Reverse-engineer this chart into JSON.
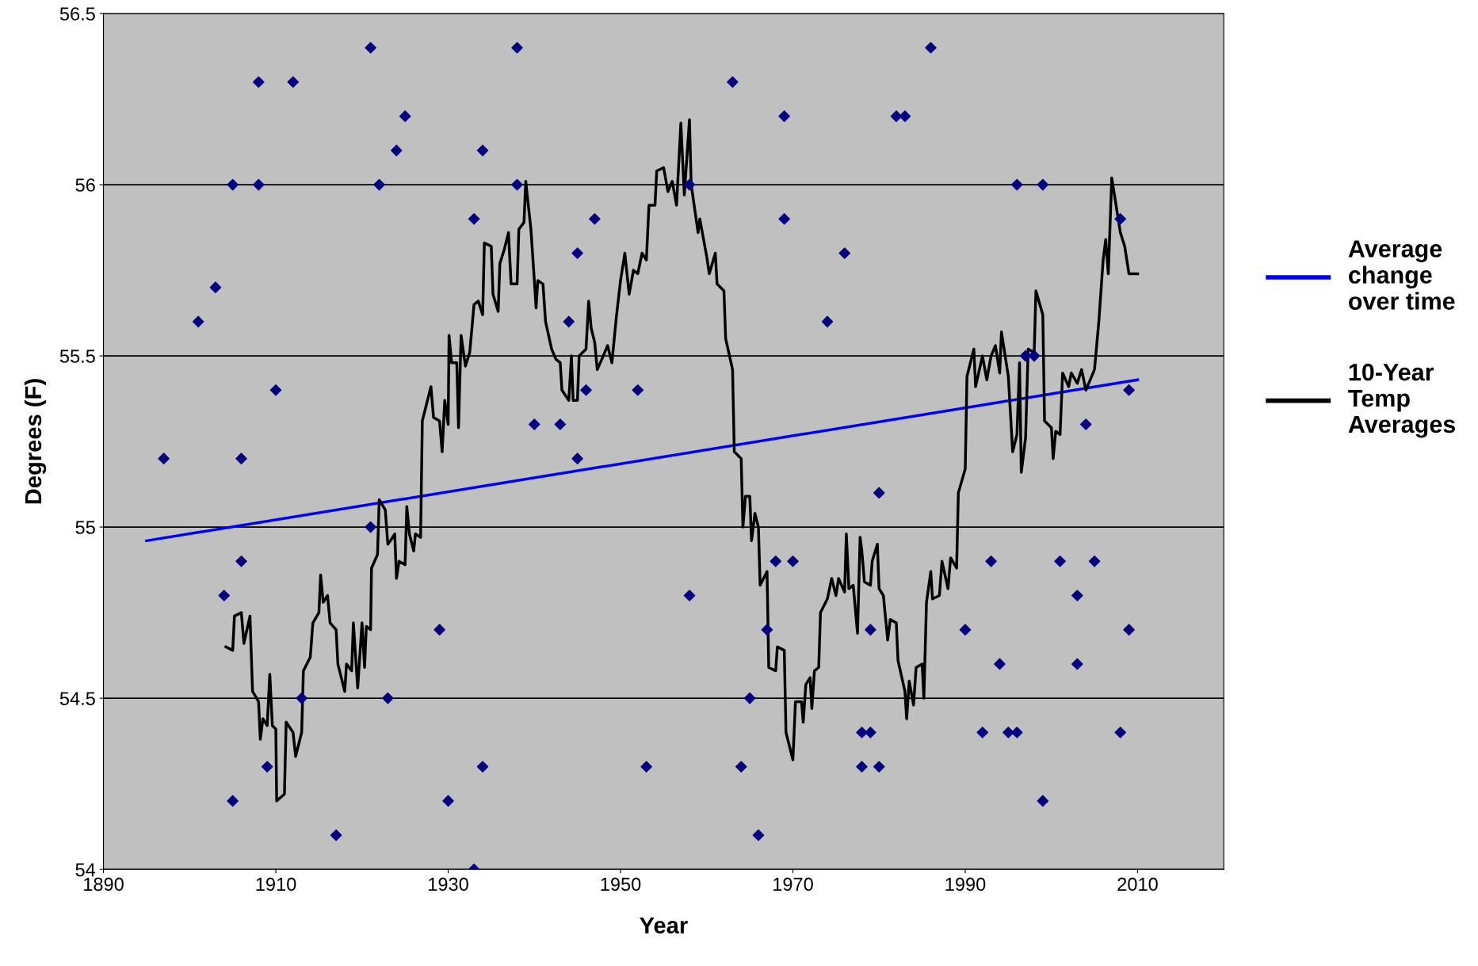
{
  "chart_data": {
    "type": "scatter",
    "xlabel": "Year",
    "ylabel": "Degrees (F)",
    "xlim": [
      1890,
      2020
    ],
    "xticks": [
      1890,
      1910,
      1930,
      1950,
      1970,
      1990,
      2010
    ],
    "ylim": [
      54,
      56.5
    ],
    "yticks": [
      54,
      54.5,
      55,
      55.5,
      56,
      56.5
    ],
    "grid": "y",
    "legend": "right",
    "series": [
      {
        "marker": "diamond",
        "color": "#000080",
        "x": [
          1897,
          1901,
          1903,
          1904,
          1905,
          1905,
          1906,
          1906,
          1908,
          1908,
          1909,
          1910,
          1912,
          1913,
          1917,
          1921,
          1921,
          1922,
          1923,
          1924,
          1925,
          1929,
          1930,
          1933,
          1933,
          1934,
          1934,
          1938,
          1938,
          1940,
          1943,
          1944,
          1945,
          1945,
          1946,
          1947,
          1952,
          1953,
          1958,
          1958,
          1963,
          1964,
          1965,
          1966,
          1967,
          1968,
          1969,
          1969,
          1970,
          1974,
          1976,
          1978,
          1978,
          1979,
          1979,
          1980,
          1980,
          1982,
          1983,
          1986,
          1990,
          1992,
          1993,
          1994,
          1995,
          1996,
          1996,
          1997,
          1998,
          1999,
          1999,
          2001,
          2003,
          2003,
          2004,
          2005,
          2008,
          2008,
          2009,
          2009
        ],
        "values": [
          55.2,
          55.6,
          55.7,
          54.8,
          56.0,
          54.2,
          55.2,
          54.9,
          56.3,
          56.0,
          54.3,
          55.4,
          56.3,
          54.5,
          54.1,
          56.4,
          55.0,
          56.0,
          54.5,
          56.1,
          56.2,
          54.7,
          54.2,
          55.9,
          54.0,
          56.1,
          54.3,
          56.4,
          56.0,
          55.3,
          55.3,
          55.6,
          55.8,
          55.2,
          55.4,
          55.9,
          55.4,
          54.3,
          54.8,
          56.0,
          56.3,
          54.3,
          54.5,
          54.1,
          54.7,
          54.9,
          56.2,
          55.9,
          54.9,
          55.6,
          55.8,
          54.4,
          54.3,
          54.4,
          54.7,
          55.1,
          54.3,
          56.2,
          56.2,
          56.4,
          54.7,
          54.4,
          54.9,
          54.6,
          54.4,
          56.0,
          54.4,
          55.5,
          55.5,
          56.0,
          54.2,
          54.9,
          54.8,
          54.6,
          55.3,
          54.9,
          54.4,
          55.9,
          55.4,
          54.7
        ]
      },
      {
        "type": "line",
        "name": "Average change over time",
        "color": "#0000ff",
        "x": [
          1895,
          2010
        ],
        "values": [
          54.96,
          55.43
        ]
      },
      {
        "type": "line",
        "name": "10-Year Temp Averages",
        "color": "#000000",
        "x": [
          1904.2,
          1905,
          1905.2,
          1906,
          1906.3,
          1907,
          1907.3,
          1908,
          1908.2,
          1908.5,
          1909,
          1909.3,
          1909.6,
          1910,
          1910.1,
          1911,
          1911.2,
          1912,
          1912.3,
          1913,
          1913.2,
          1914,
          1914.3,
          1915,
          1915.2,
          1915.5,
          1916,
          1916.3,
          1917,
          1917.2,
          1918,
          1918.2,
          1918.8,
          1919,
          1919.5,
          1920,
          1920.3,
          1920.5,
          1921,
          1921.1,
          1921.8,
          1922,
          1922.7,
          1923,
          1923.3,
          1923.8,
          1924,
          1924.3,
          1925,
          1925.2,
          1925.5,
          1926,
          1926.2,
          1926.8,
          1927,
          1928,
          1928.3,
          1929,
          1929.3,
          1929.6,
          1930,
          1930.1,
          1930.4,
          1931,
          1931.2,
          1931.5,
          1932,
          1932.5,
          1933,
          1933.5,
          1934,
          1934.2,
          1935,
          1935.2,
          1935.8,
          1936,
          1936.5,
          1937,
          1937.3,
          1938,
          1938.2,
          1938.8,
          1939,
          1939.6,
          1940,
          1940.2,
          1940.4,
          1941,
          1941.3,
          1942,
          1942.5,
          1943,
          1943.2,
          1944,
          1944.3,
          1944.5,
          1945,
          1945.2,
          1946,
          1946.3,
          1946.6,
          1947,
          1947.3,
          1948,
          1948.5,
          1949,
          1949.5,
          1950,
          1950.5,
          1951,
          1951.5,
          1952,
          1952.5,
          1953,
          1953.3,
          1954,
          1954.2,
          1955,
          1955.5,
          1956,
          1956.5,
          1957,
          1957.4,
          1958,
          1958.2,
          1959,
          1959.2,
          1960,
          1960.3,
          1961,
          1961.2,
          1962,
          1962.2,
          1963,
          1963.2,
          1964,
          1964.2,
          1964.5,
          1965,
          1965.2,
          1965.6,
          1966,
          1966.2,
          1967,
          1967.2,
          1968,
          1968.2,
          1969,
          1969.2,
          1970,
          1970.3,
          1971,
          1971.2,
          1971.5,
          1972,
          1972.2,
          1972.5,
          1973,
          1973.2,
          1974,
          1974.5,
          1975,
          1975.3,
          1976,
          1976.2,
          1976.5,
          1977,
          1977.5,
          1977.8,
          1978,
          1978.3,
          1979,
          1979.2,
          1979.8,
          1980,
          1980.5,
          1981,
          1981.3,
          1982,
          1982.2,
          1983,
          1983.2,
          1983.5,
          1984,
          1984.3,
          1985,
          1985.2,
          1985.5,
          1986,
          1986.2,
          1987,
          1987.3,
          1988,
          1988.3,
          1989,
          1989.2,
          1990,
          1990.2,
          1991,
          1991.2,
          1992,
          1992.5,
          1993,
          1993.5,
          1994,
          1994.2,
          1995,
          1995.5,
          1996,
          1996.3,
          1996.5,
          1997,
          1997.3,
          1998,
          1998.2,
          1999,
          1999.2,
          2000,
          2000.2,
          2000.5,
          2001,
          2001.3,
          2002,
          2002.3,
          2003,
          2003.5,
          2004,
          2004.5,
          2005,
          2005.5,
          2006,
          2006.3,
          2006.6,
          2007,
          2008,
          2008.5,
          2009,
          2010
        ],
        "values": [
          54.65,
          54.64,
          54.74,
          54.75,
          54.66,
          54.74,
          54.52,
          54.49,
          54.38,
          54.44,
          54.42,
          54.57,
          54.42,
          54.41,
          54.2,
          54.22,
          54.43,
          54.4,
          54.33,
          54.4,
          54.58,
          54.62,
          54.72,
          54.75,
          54.86,
          54.78,
          54.8,
          54.72,
          54.7,
          54.6,
          54.52,
          54.6,
          54.58,
          54.72,
          54.53,
          54.72,
          54.59,
          54.71,
          54.7,
          54.88,
          54.92,
          55.08,
          55.05,
          54.95,
          54.96,
          54.98,
          54.85,
          54.9,
          54.89,
          55.06,
          54.98,
          54.93,
          54.98,
          54.97,
          55.31,
          55.41,
          55.32,
          55.31,
          55.22,
          55.37,
          55.3,
          55.56,
          55.48,
          55.48,
          55.29,
          55.56,
          55.47,
          55.51,
          55.65,
          55.66,
          55.62,
          55.83,
          55.82,
          55.68,
          55.63,
          55.77,
          55.81,
          55.86,
          55.71,
          55.71,
          55.87,
          55.89,
          56.01,
          55.87,
          55.72,
          55.64,
          55.72,
          55.71,
          55.6,
          55.52,
          55.49,
          55.48,
          55.4,
          55.37,
          55.5,
          55.37,
          55.37,
          55.5,
          55.52,
          55.66,
          55.58,
          55.54,
          55.46,
          55.5,
          55.53,
          55.48,
          55.61,
          55.72,
          55.8,
          55.68,
          55.75,
          55.74,
          55.8,
          55.78,
          55.94,
          55.94,
          56.04,
          56.05,
          55.98,
          56.01,
          55.94,
          56.18,
          55.97,
          56.19,
          56.0,
          55.86,
          55.9,
          55.79,
          55.74,
          55.8,
          55.71,
          55.69,
          55.55,
          55.46,
          55.22,
          55.2,
          55.0,
          55.09,
          55.09,
          54.96,
          55.04,
          55.0,
          54.83,
          54.87,
          54.59,
          54.58,
          54.65,
          54.64,
          54.4,
          54.32,
          54.49,
          54.49,
          54.43,
          54.54,
          54.56,
          54.47,
          54.58,
          54.59,
          54.75,
          54.79,
          54.85,
          54.8,
          54.85,
          54.81,
          54.98,
          54.82,
          54.83,
          54.69,
          54.97,
          54.93,
          54.84,
          54.83,
          54.9,
          54.95,
          54.82,
          54.8,
          54.67,
          54.73,
          54.72,
          54.61,
          54.52,
          54.44,
          54.55,
          54.48,
          54.59,
          54.6,
          54.5,
          54.78,
          54.87,
          54.79,
          54.8,
          54.9,
          54.82,
          54.91,
          54.88,
          55.1,
          55.17,
          55.44,
          55.52,
          55.41,
          55.5,
          55.43,
          55.5,
          55.53,
          55.45,
          55.57,
          55.44,
          55.22,
          55.27,
          55.48,
          55.16,
          55.26,
          55.52,
          55.51,
          55.69,
          55.62,
          55.31,
          55.29,
          55.2,
          55.28,
          55.27,
          55.45,
          55.41,
          55.45,
          55.42,
          55.46,
          55.4,
          55.43,
          55.46,
          55.6,
          55.78,
          55.84,
          55.74,
          56.02,
          55.86,
          55.82,
          55.74,
          55.74
        ]
      }
    ]
  }
}
